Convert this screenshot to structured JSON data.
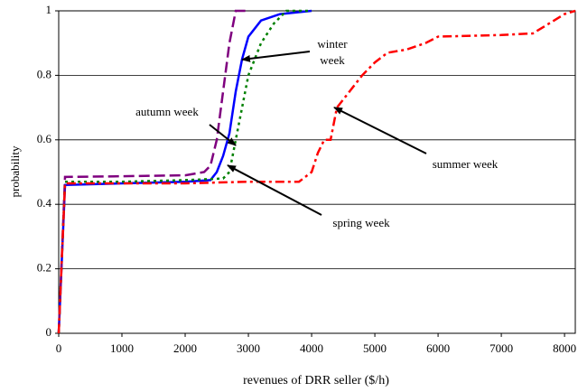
{
  "chart_data": {
    "type": "line",
    "xlabel": "revenues of DRR seller ($/h)",
    "ylabel": "probability",
    "xlim": [
      0,
      8170
    ],
    "xticks": [
      0,
      1000,
      2000,
      3000,
      4000,
      5000,
      6000,
      7000,
      8000
    ],
    "ylim": [
      0,
      1
    ],
    "yticks": [
      0,
      0.2,
      0.4,
      0.6,
      0.8,
      1
    ],
    "grid": true,
    "series": [
      {
        "name": "winter week",
        "color": "#0000ff",
        "dash": "solid",
        "x": [
          0,
          100,
          1000,
          2000,
          2400,
          2500,
          2600,
          2700,
          2800,
          2900,
          3000,
          3200,
          3500,
          4000
        ],
        "values": [
          0,
          0.46,
          0.465,
          0.47,
          0.475,
          0.5,
          0.55,
          0.62,
          0.75,
          0.85,
          0.92,
          0.97,
          0.99,
          1
        ]
      },
      {
        "name": "autumn week",
        "color": "#7f007f",
        "dash": "dashed",
        "x": [
          0,
          100,
          1000,
          2000,
          2300,
          2400,
          2500,
          2600,
          2700,
          2800,
          3000
        ],
        "values": [
          0,
          0.485,
          0.487,
          0.49,
          0.5,
          0.52,
          0.6,
          0.75,
          0.9,
          1,
          1
        ]
      },
      {
        "name": "spring week",
        "color": "#008000",
        "dash": "dotted",
        "x": [
          0,
          100,
          1000,
          2000,
          2600,
          2700,
          2800,
          2900,
          3000,
          3200,
          3400,
          3600,
          4000
        ],
        "values": [
          0,
          0.47,
          0.47,
          0.475,
          0.48,
          0.5,
          0.6,
          0.7,
          0.8,
          0.9,
          0.96,
          1,
          1
        ]
      },
      {
        "name": "summer week",
        "color": "#ff0000",
        "dash": "dashdot",
        "x": [
          0,
          100,
          1000,
          2000,
          3000,
          3800,
          4000,
          4100,
          4200,
          4300,
          4400,
          4600,
          4800,
          5000,
          5200,
          5500,
          5800,
          6000,
          7000,
          7500,
          8000,
          8170
        ],
        "values": [
          0,
          0.465,
          0.465,
          0.465,
          0.47,
          0.47,
          0.5,
          0.56,
          0.6,
          0.6,
          0.7,
          0.75,
          0.8,
          0.84,
          0.87,
          0.88,
          0.9,
          0.92,
          0.925,
          0.93,
          0.99,
          1
        ]
      }
    ],
    "annotations": [
      "winter",
      "week",
      "autumn week",
      "spring week",
      "summer week"
    ]
  }
}
